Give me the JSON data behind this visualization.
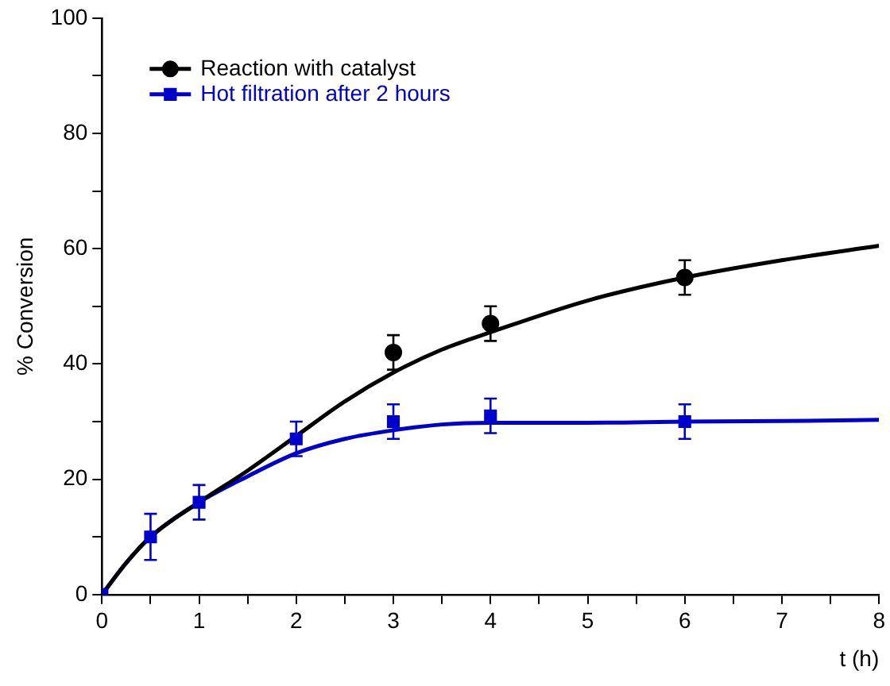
{
  "chart_data": {
    "type": "scatter",
    "xlabel": "t (h)",
    "ylabel": "% Conversion",
    "xlim": [
      0,
      8
    ],
    "xticks": [
      0,
      {
        "value": 0.5,
        "label": null
      },
      1,
      {
        "value": 1.5,
        "label": null
      },
      2,
      {
        "value": 2.5,
        "label": null
      },
      3,
      {
        "value": 3.5,
        "label": null
      },
      4,
      {
        "value": 4.5,
        "label": null
      },
      5,
      {
        "value": 5.5,
        "label": null
      },
      6,
      {
        "value": 6.5,
        "label": null
      },
      7,
      {
        "value": 7.5,
        "label": null
      },
      8
    ],
    "ylim": [
      0,
      100
    ],
    "yticks": [
      0,
      {
        "value": 10,
        "label": null
      },
      20,
      {
        "value": 30,
        "label": null
      },
      40,
      {
        "value": 50,
        "label": null
      },
      60,
      {
        "value": 70,
        "label": null
      },
      80,
      {
        "value": 90,
        "label": null
      },
      100
    ],
    "grid": false,
    "legend": "top left",
    "series": [
      {
        "name": "Reaction with catalyst",
        "marker": "circle",
        "color": "#000000",
        "x": [
          3,
          4,
          6
        ],
        "values": [
          42,
          47,
          55
        ],
        "errors": [
          3,
          3,
          3
        ]
      },
      {
        "name": "Hot filtration after 2 hours",
        "marker": "square",
        "color": "#0000cc",
        "x": [
          0,
          0.5,
          1,
          2,
          3,
          4,
          6
        ],
        "values": [
          0,
          10,
          16,
          27,
          30,
          31,
          30
        ],
        "errors": [
          null,
          4,
          3,
          3,
          3,
          3,
          3
        ]
      },
      {
        "type": "line",
        "marker": "none",
        "color": "#000000",
        "x": [
          0,
          0.25,
          0.5,
          1,
          1.5,
          2,
          2.5,
          3,
          3.5,
          4,
          5,
          6,
          7,
          8
        ],
        "values": [
          0,
          5.5,
          10,
          16,
          21.5,
          27.5,
          33.5,
          38.5,
          42.5,
          45.5,
          51,
          55,
          58,
          60.5
        ]
      },
      {
        "type": "line",
        "marker": "none",
        "color": "#0000cc",
        "x": [
          0,
          0.25,
          0.5,
          1,
          1.5,
          2,
          2.5,
          3,
          3.5,
          4,
          5,
          6,
          7,
          8
        ],
        "values": [
          0,
          5.5,
          10,
          16,
          20.5,
          24.5,
          27,
          28.5,
          29.5,
          29.8,
          29.8,
          30,
          30.1,
          30.3
        ]
      }
    ]
  }
}
